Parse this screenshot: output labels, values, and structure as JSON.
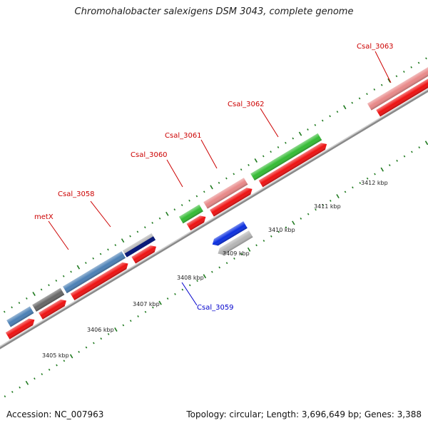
{
  "title": "Chromohalobacter salexigens DSM 3043, complete genome",
  "accession": "Accession: NC_007963",
  "summary": "Topology: circular; Length: 3,696,649 bp; Genes: 3,388",
  "colors": {
    "background": "#ffffff",
    "tick": "#1f7a1f",
    "backbone": "#888888",
    "label_red": "#cc0000",
    "label_blue": "#0000cc"
  },
  "kbp_labels": [
    "3405 kbp",
    "3406 kbp",
    "3407 kbp",
    "3408 kbp",
    "3409 kbp",
    "3410 kbp",
    "3411 kbp",
    "3412 kbp"
  ],
  "gene_labels": [
    {
      "text": "metX",
      "color": "#cc0000"
    },
    {
      "text": "Csal_3058",
      "color": "#cc0000"
    },
    {
      "text": "Csal_3060",
      "color": "#cc0000"
    },
    {
      "text": "Csal_3061",
      "color": "#cc0000"
    },
    {
      "text": "Csal_3062",
      "color": "#cc0000"
    },
    {
      "text": "Csal_3063",
      "color": "#cc0000"
    },
    {
      "text": "Csal_3059",
      "color": "#0000cc"
    }
  ],
  "features": [
    {
      "name": "gene-a",
      "color": "#4a7fb5",
      "strand": "forward"
    },
    {
      "name": "gene-b",
      "color": "#666666",
      "strand": "forward"
    },
    {
      "name": "metX",
      "color": "#4a7fb5",
      "strand": "forward"
    },
    {
      "name": "Csal_3058",
      "color": "#b0b0b0",
      "strand": "forward"
    },
    {
      "name": "Csal_3060",
      "color": "#33bb33",
      "strand": "forward"
    },
    {
      "name": "Csal_3061",
      "color": "#e88888",
      "strand": "forward"
    },
    {
      "name": "Csal_3062",
      "color": "#33bb33",
      "strand": "forward"
    },
    {
      "name": "Csal_3063",
      "color": "#e88888",
      "strand": "forward"
    },
    {
      "name": "Csal_3059",
      "color": "#0b2fe0",
      "strand": "reverse"
    },
    {
      "name": "Csal_3059-cds",
      "color": "#b5b5b5",
      "strand": "reverse"
    }
  ],
  "cds_color": "#ee1111"
}
